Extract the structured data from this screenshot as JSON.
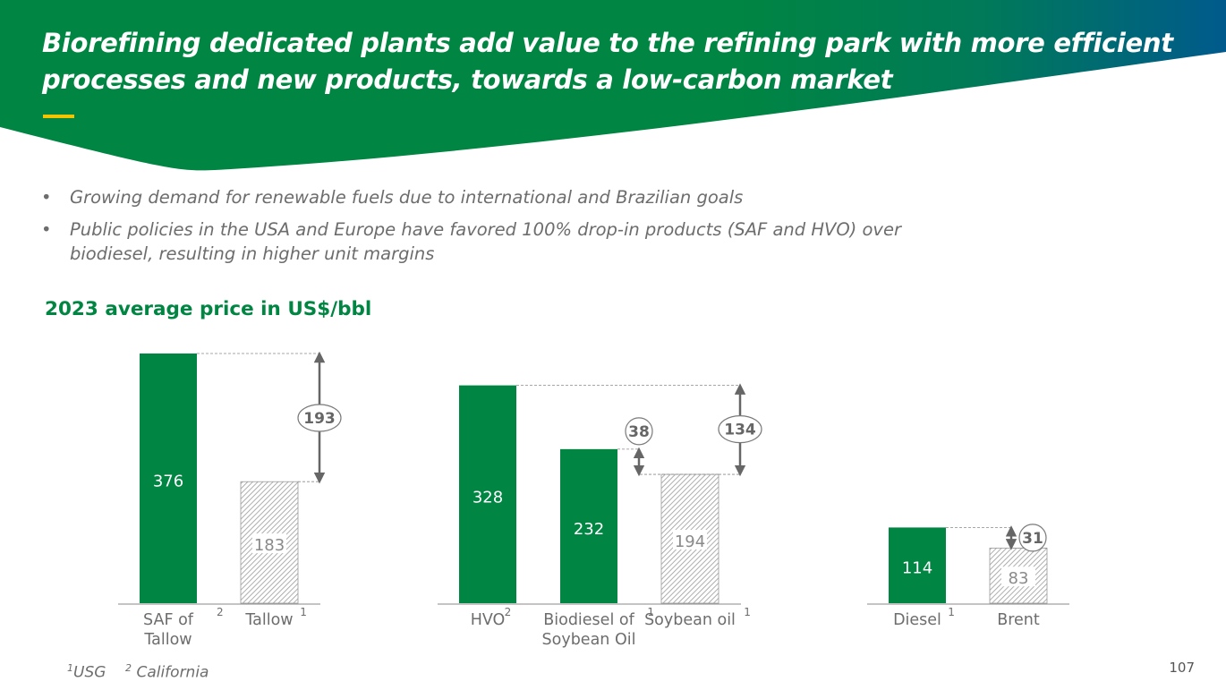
{
  "header": {
    "title_line1": "Biorefining dedicated plants add value to the refining park with more efficient",
    "title_line2": "processes and new products, towards a low-carbon market",
    "colors": {
      "green": "#008542",
      "blue": "#005a8c",
      "accent": "#f2c400"
    }
  },
  "bullets": [
    {
      "text": "Growing demand for renewable fuels due to international and Brazilian goals"
    },
    {
      "line1": "Public policies in the USA and Europe have favored 100% drop-in products (SAF and HVO) over",
      "line2": "biodiesel, resulting in higher unit margins"
    }
  ],
  "bullet_glyph": "•",
  "chart_title": "2023 average price in US$/bbl",
  "chart_data": {
    "type": "bar",
    "unit": "US$/bbl",
    "groups": [
      {
        "bars": [
          {
            "label": "SAF of Tallow",
            "label_lines": [
              "SAF of",
              "Tallow"
            ],
            "value": 376,
            "sup": "2",
            "style": "solid"
          },
          {
            "label": "Tallow",
            "label_lines": [
              "Tallow"
            ],
            "value": 183,
            "sup": "1",
            "style": "hatched"
          }
        ],
        "differences": [
          {
            "value": 193,
            "from": 0,
            "to": 1
          }
        ]
      },
      {
        "bars": [
          {
            "label": "HVO",
            "label_lines": [
              "HVO"
            ],
            "value": 328,
            "sup": "2",
            "style": "solid"
          },
          {
            "label": "Biodiesel of Soybean Oil",
            "label_lines": [
              "Biodiesel of",
              "Soybean Oil"
            ],
            "value": 232,
            "sup": "1",
            "style": "solid"
          },
          {
            "label": "Soybean oil",
            "label_lines": [
              "Soybean oil"
            ],
            "value": 194,
            "sup": "1",
            "style": "hatched"
          }
        ],
        "differences": [
          {
            "value": 38,
            "from": 1,
            "to": 2
          },
          {
            "value": 134,
            "from": 0,
            "to": 2
          }
        ]
      },
      {
        "bars": [
          {
            "label": "Diesel",
            "label_lines": [
              "Diesel"
            ],
            "value": 114,
            "sup": "1",
            "style": "solid"
          },
          {
            "label": "Brent",
            "label_lines": [
              "Brent"
            ],
            "value": 83,
            "sup": "",
            "style": "hatched"
          }
        ],
        "differences": [
          {
            "value": 31,
            "from": 0,
            "to": 1
          }
        ]
      }
    ],
    "colors": {
      "bar": "#008542",
      "hatch": "#9a9a9a",
      "label": "#6d6d6d",
      "arrow": "#666666"
    }
  },
  "footnotes": [
    {
      "mark": "1",
      "text": "USG"
    },
    {
      "mark": "2",
      "text": "California"
    }
  ],
  "page_number": "107"
}
